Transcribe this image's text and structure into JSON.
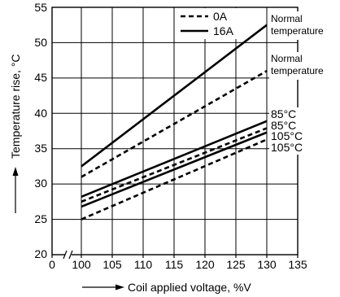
{
  "chart_data": {
    "type": "line",
    "xlabel": "Coil applied voltage, %V",
    "ylabel": "Temperature rise, °C",
    "xlim": [
      100,
      135
    ],
    "ylim": [
      20,
      55
    ],
    "x_axis_break": true,
    "x_ticks": [
      "0",
      "100",
      "105",
      "110",
      "115",
      "120",
      "125",
      "130",
      "135"
    ],
    "y_ticks": [
      "20",
      "25",
      "30",
      "35",
      "40",
      "45",
      "50",
      "55"
    ],
    "grid": true,
    "legend": {
      "placement": "top-right",
      "entries": [
        {
          "label": "0A",
          "style": "dashed"
        },
        {
          "label": "16A",
          "style": "solid"
        }
      ]
    },
    "series": [
      {
        "current": "16A",
        "style": "solid",
        "condition": "Normal temperature",
        "points": [
          [
            100,
            32.5
          ],
          [
            130,
            52.5
          ]
        ]
      },
      {
        "current": "0A",
        "style": "dashed",
        "condition": "Normal temperature",
        "points": [
          [
            100,
            31.0
          ],
          [
            130,
            46.0
          ]
        ]
      },
      {
        "current": "16A",
        "style": "solid",
        "condition": "85°C",
        "points": [
          [
            100,
            28.2
          ],
          [
            130,
            38.9
          ]
        ]
      },
      {
        "current": "0A",
        "style": "dashed",
        "condition": "85°C",
        "points": [
          [
            100,
            27.5
          ],
          [
            130,
            37.9
          ]
        ]
      },
      {
        "current": "16A",
        "style": "solid",
        "condition": "105°C",
        "points": [
          [
            100,
            26.8
          ],
          [
            130,
            37.3
          ]
        ]
      },
      {
        "current": "0A",
        "style": "dashed",
        "condition": "105°C",
        "points": [
          [
            100,
            25.0
          ],
          [
            130,
            36.3
          ]
        ]
      }
    ],
    "annotations": {
      "normal_temperature_line1": "Normal",
      "normal_temperature_line2": "temperature",
      "deg85_a": "85°C",
      "deg85_b": "85°C",
      "deg105_a": "105°C",
      "deg105_b": "105°C"
    }
  }
}
